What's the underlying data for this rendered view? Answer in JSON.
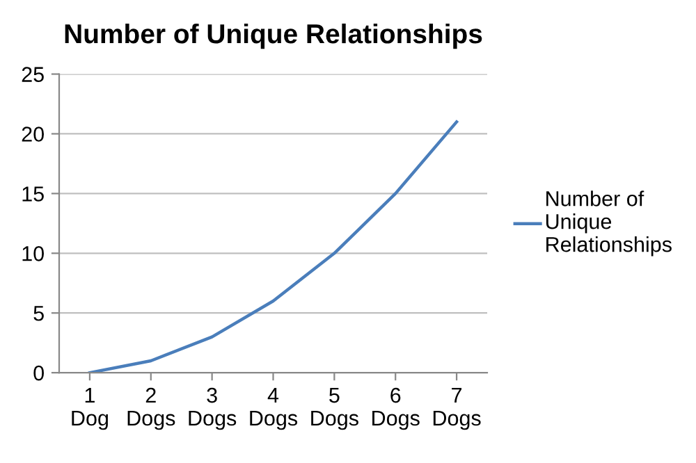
{
  "chart_data": {
    "type": "line",
    "title": "Number of Unique Relationships",
    "categories": [
      "1\nDog",
      "2\nDogs",
      "3\nDogs",
      "4\nDogs",
      "5\nDogs",
      "6\nDogs",
      "7\nDogs"
    ],
    "series": [
      {
        "name": "Number of\nUnique\nRelationships",
        "color": "#4a7ebb",
        "values": [
          0,
          1,
          3,
          6,
          10,
          15,
          21
        ]
      }
    ],
    "ylim": [
      0,
      25
    ],
    "yticks": [
      0,
      5,
      10,
      15,
      20,
      25
    ],
    "grid": "y",
    "legend": "right",
    "marker": "none",
    "line_style": "solid"
  }
}
